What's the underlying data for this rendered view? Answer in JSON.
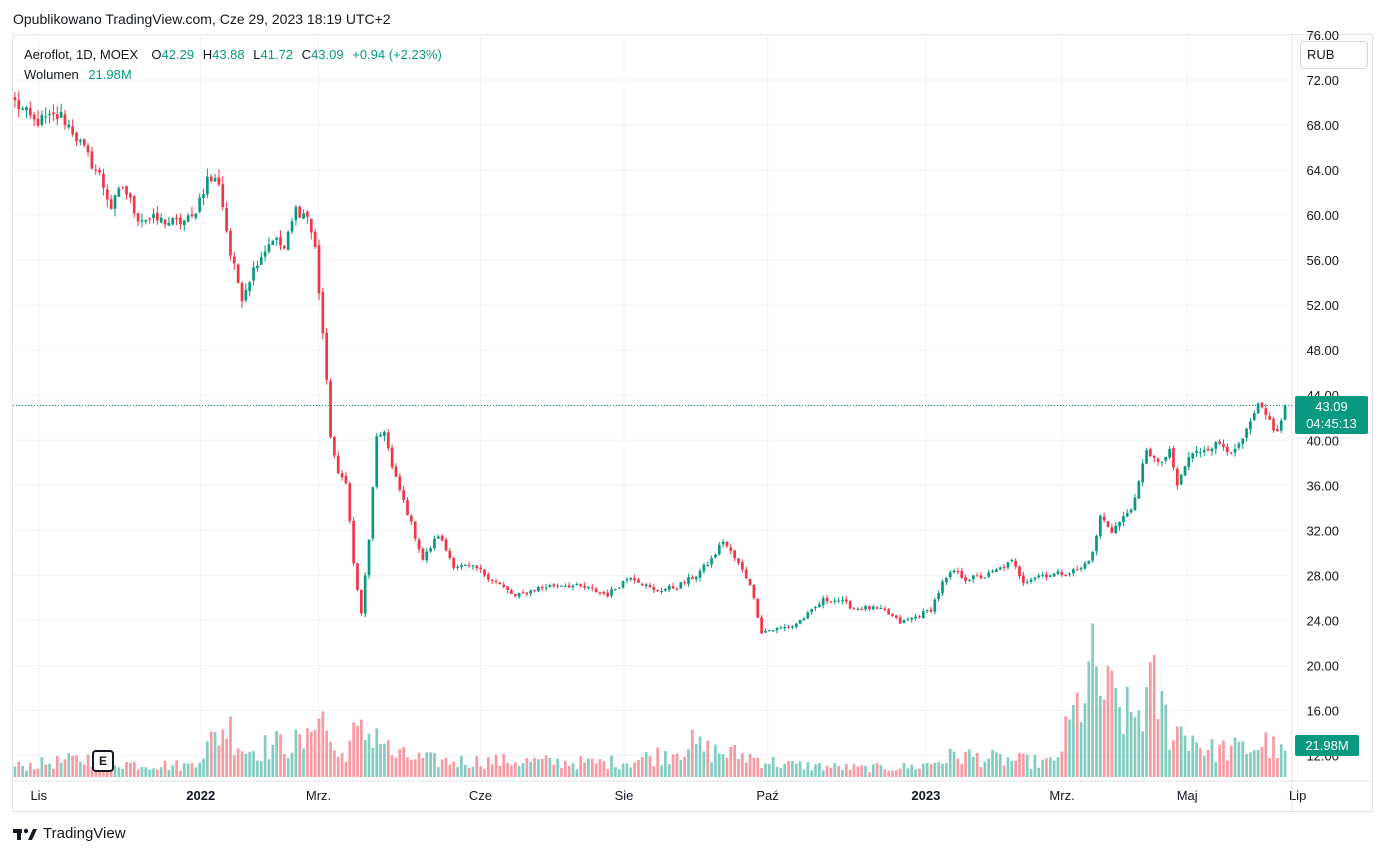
{
  "header": {
    "published": "Opublikowano TradingView.com, Cze 29, 2023 18:19 UTC+2"
  },
  "legend": {
    "symbol": "Aeroflot, 1D, MOEX",
    "o_label": "O",
    "o_value": "42.29",
    "h_label": "H",
    "h_value": "43.88",
    "l_label": "L",
    "l_value": "41.72",
    "c_label": "C",
    "c_value": "43.09",
    "change": "+0.94 (+2.23%)",
    "volume_label": "Wolumen",
    "volume_value": "21.98M"
  },
  "currency": "RUB",
  "price_tag": {
    "price": "43.09",
    "countdown": "04:45:13"
  },
  "volume_tag": "21.98M",
  "event_badge": "E",
  "footer": {
    "brand": "TradingView"
  },
  "colors": {
    "up": "#089981",
    "down": "#f23645",
    "grid": "#f0f3fa",
    "text": "#131722"
  },
  "chart_data": {
    "type": "candlestick",
    "title": "Aeroflot, 1D, MOEX",
    "ylabel": "RUB",
    "ylim": [
      10,
      76
    ],
    "y_ticks": [
      "12.00",
      "16.00",
      "20.00",
      "24.00",
      "28.00",
      "32.00",
      "36.00",
      "40.00",
      "44.00",
      "48.00",
      "52.00",
      "56.00",
      "60.00",
      "64.00",
      "68.00",
      "72.00",
      "76.00"
    ],
    "x_ticks": [
      "Lis",
      "2022",
      "Mrz.",
      "Cze",
      "Sie",
      "Paź",
      "2023",
      "Mrz.",
      "Maj",
      "Lip"
    ],
    "x_tick_bold": [
      false,
      true,
      false,
      false,
      false,
      false,
      true,
      false,
      false,
      false
    ],
    "last_price": 43.09,
    "price_anchors": [
      [
        0,
        70.0
      ],
      [
        5,
        68.3
      ],
      [
        12,
        68.8
      ],
      [
        15,
        67.5
      ],
      [
        20,
        64.6
      ],
      [
        22,
        63.5
      ],
      [
        25,
        60.7
      ],
      [
        28,
        62.6
      ],
      [
        32,
        59.8
      ],
      [
        36,
        59.6
      ],
      [
        42,
        59.3
      ],
      [
        46,
        59.7
      ],
      [
        50,
        63.2
      ],
      [
        53,
        63.0
      ],
      [
        56,
        56.5
      ],
      [
        59,
        52.8
      ],
      [
        63,
        56.0
      ],
      [
        67,
        58.0
      ],
      [
        70,
        57.0
      ],
      [
        73,
        60.5
      ],
      [
        76,
        59.9
      ],
      [
        78,
        57.0
      ],
      [
        80,
        49.5
      ],
      [
        82,
        40.5
      ],
      [
        84,
        36.8
      ],
      [
        86,
        36.5
      ],
      [
        88,
        29.0
      ],
      [
        90,
        24.5
      ],
      [
        92,
        31.3
      ],
      [
        94,
        40.0
      ],
      [
        96,
        41.0
      ],
      [
        98,
        37.5
      ],
      [
        102,
        33.6
      ],
      [
        106,
        29.4
      ],
      [
        110,
        31.6
      ],
      [
        114,
        28.9
      ],
      [
        120,
        28.6
      ],
      [
        125,
        27.4
      ],
      [
        130,
        26.1
      ],
      [
        136,
        26.9
      ],
      [
        142,
        27.2
      ],
      [
        148,
        26.9
      ],
      [
        154,
        26.3
      ],
      [
        160,
        28.0
      ],
      [
        166,
        26.6
      ],
      [
        172,
        27.0
      ],
      [
        177,
        28.0
      ],
      [
        181,
        29.4
      ],
      [
        184,
        31.1
      ],
      [
        188,
        29.0
      ],
      [
        191,
        27.3
      ],
      [
        194,
        23.0
      ],
      [
        197,
        23.2
      ],
      [
        202,
        23.5
      ],
      [
        206,
        24.5
      ],
      [
        210,
        25.8
      ],
      [
        214,
        25.8
      ],
      [
        218,
        25.1
      ],
      [
        222,
        25.1
      ],
      [
        226,
        24.8
      ],
      [
        230,
        23.8
      ],
      [
        234,
        24.3
      ],
      [
        238,
        25.0
      ],
      [
        241,
        27.3
      ],
      [
        244,
        28.4
      ],
      [
        247,
        27.7
      ],
      [
        252,
        27.9
      ],
      [
        256,
        28.6
      ],
      [
        259,
        29.2
      ],
      [
        262,
        27.5
      ],
      [
        266,
        28.0
      ],
      [
        270,
        28.1
      ],
      [
        274,
        28.3
      ],
      [
        277,
        28.6
      ],
      [
        280,
        29.9
      ],
      [
        282,
        33.2
      ],
      [
        285,
        32.0
      ],
      [
        288,
        33.1
      ],
      [
        291,
        34.6
      ],
      [
        294,
        39.3
      ],
      [
        297,
        37.8
      ],
      [
        300,
        38.9
      ],
      [
        302,
        36.0
      ],
      [
        305,
        38.5
      ],
      [
        309,
        39.3
      ],
      [
        313,
        39.7
      ],
      [
        317,
        38.9
      ],
      [
        320,
        40.7
      ],
      [
        323,
        43.0
      ],
      [
        326,
        41.7
      ],
      [
        328,
        40.6
      ],
      [
        330,
        43.09
      ]
    ],
    "volume_anchors": [
      [
        0,
        1.2
      ],
      [
        20,
        2.1
      ],
      [
        30,
        1.5
      ],
      [
        45,
        1.3
      ],
      [
        50,
        3.4
      ],
      [
        55,
        6.0
      ],
      [
        60,
        3.0
      ],
      [
        70,
        3.8
      ],
      [
        76,
        3.8
      ],
      [
        78,
        9.0
      ],
      [
        80,
        6.5
      ],
      [
        82,
        4.2
      ],
      [
        84,
        2.0
      ],
      [
        88,
        4.5
      ],
      [
        94,
        5.3
      ],
      [
        98,
        2.5
      ],
      [
        110,
        1.8
      ],
      [
        130,
        1.8
      ],
      [
        150,
        1.6
      ],
      [
        160,
        1.8
      ],
      [
        170,
        2.8
      ],
      [
        175,
        3.8
      ],
      [
        180,
        3.0
      ],
      [
        190,
        2.4
      ],
      [
        200,
        1.4
      ],
      [
        220,
        1.0
      ],
      [
        235,
        1.2
      ],
      [
        245,
        2.5
      ],
      [
        255,
        2.0
      ],
      [
        270,
        1.6
      ],
      [
        280,
        12.0
      ],
      [
        283,
        9.5
      ],
      [
        290,
        6.5
      ],
      [
        296,
        9.8
      ],
      [
        300,
        5.5
      ],
      [
        305,
        5.0
      ],
      [
        310,
        3.0
      ],
      [
        320,
        3.2
      ],
      [
        325,
        3.8
      ],
      [
        330,
        2.4
      ]
    ],
    "n_days": 331
  }
}
